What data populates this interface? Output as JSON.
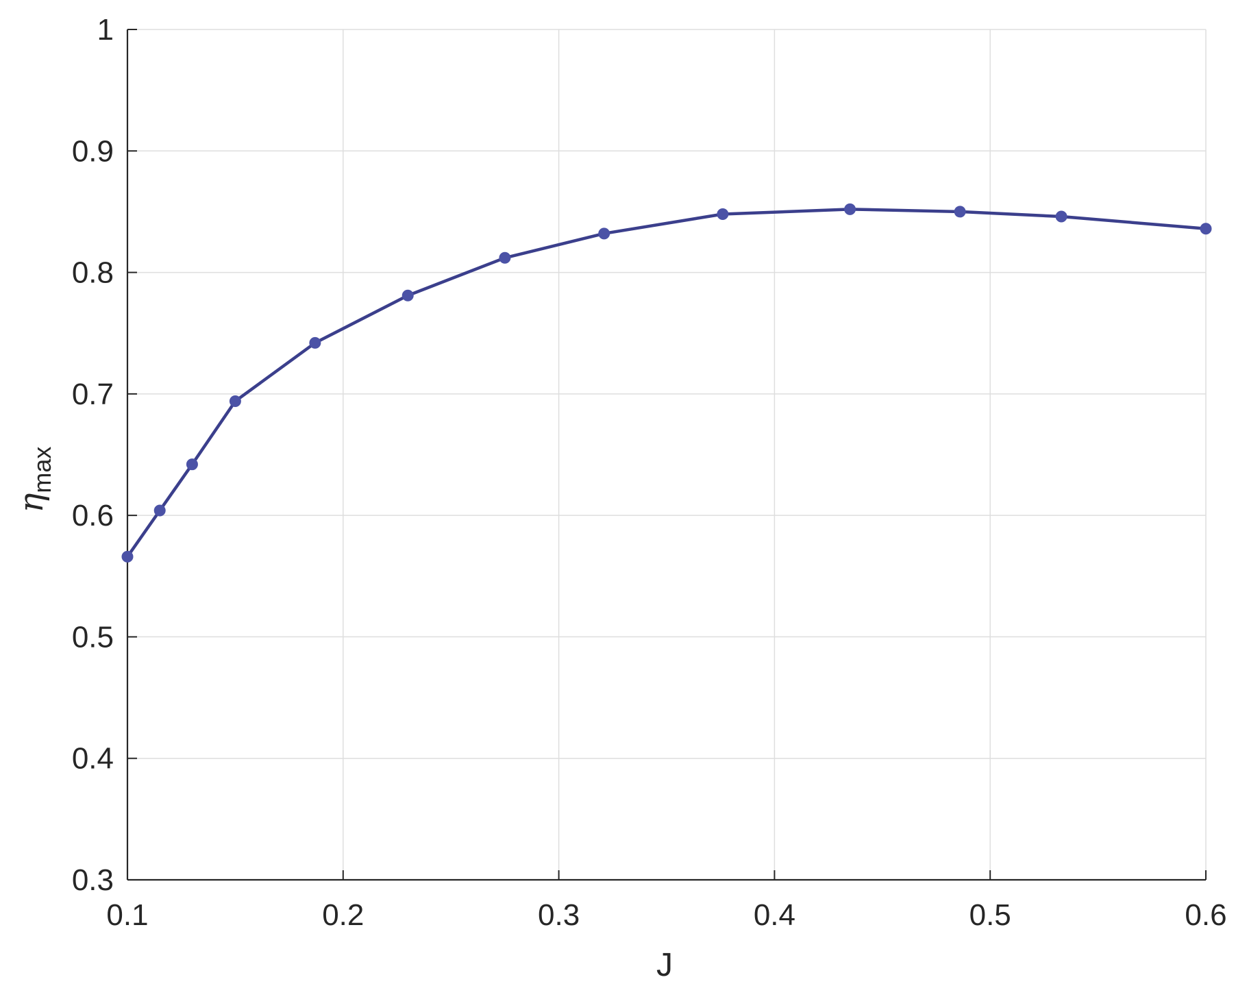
{
  "chart_data": {
    "type": "line",
    "title": "",
    "xlabel": "J",
    "ylabel": {
      "symbol": "η",
      "subscript": "max"
    },
    "xlim": [
      0.1,
      0.6
    ],
    "ylim": [
      0.3,
      1.0
    ],
    "xticks": [
      "0.1",
      "0.2",
      "0.3",
      "0.4",
      "0.5",
      "0.6"
    ],
    "yticks": [
      "0.3",
      "0.4",
      "0.5",
      "0.6",
      "0.7",
      "0.8",
      "0.9",
      "1"
    ],
    "grid": true,
    "legend": "none",
    "series": [
      {
        "color": "#3b3f8c",
        "marker_color": "#4b52a6",
        "marker": "circle",
        "x": [
          0.1,
          0.115,
          0.13,
          0.15,
          0.187,
          0.23,
          0.275,
          0.321,
          0.376,
          0.435,
          0.486,
          0.533,
          0.6
        ],
        "y": [
          0.566,
          0.604,
          0.642,
          0.694,
          0.742,
          0.781,
          0.812,
          0.832,
          0.848,
          0.852,
          0.85,
          0.846,
          0.836
        ]
      }
    ]
  }
}
